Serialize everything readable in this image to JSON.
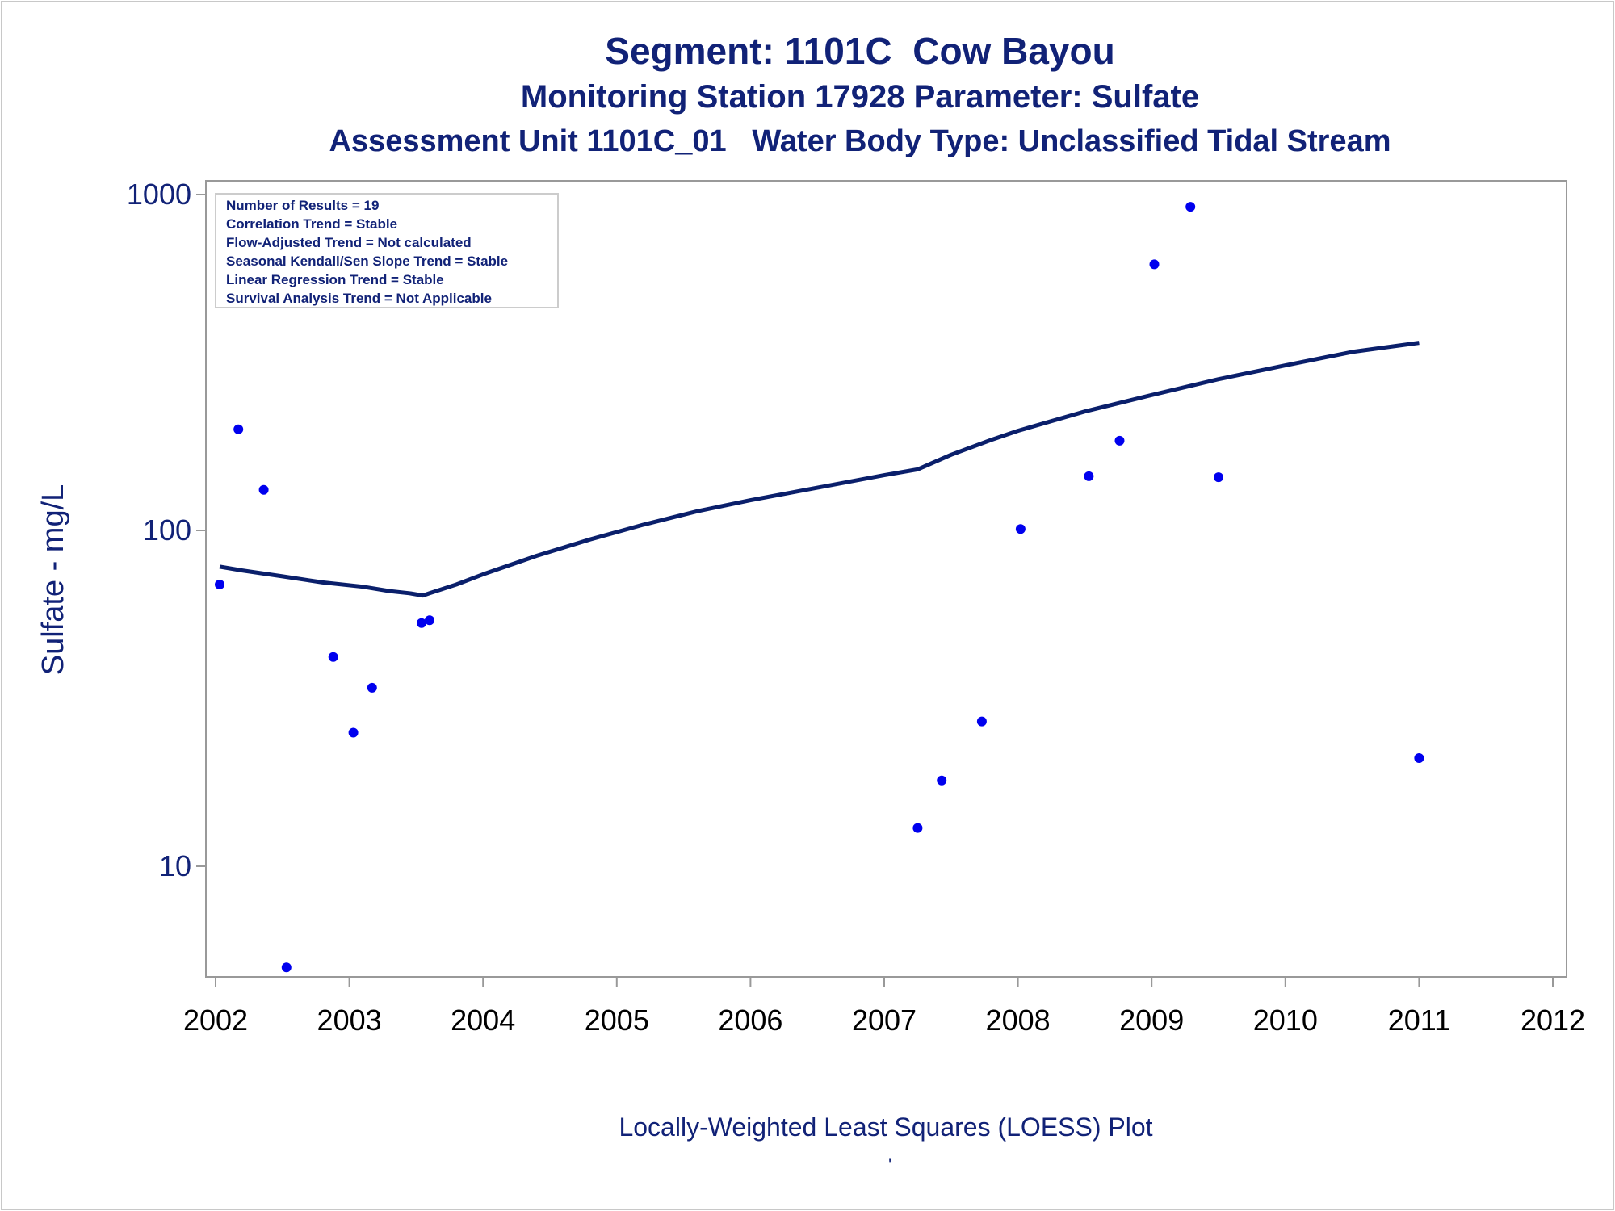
{
  "titles": {
    "line1": "Segment: 1101C  Cow Bayou",
    "line2": "Monitoring Station 17928 Parameter: Sulfate",
    "line3": "Assessment Unit 1101C_01   Water Body Type: Unclassified Tidal Stream"
  },
  "footnote": "Locally-Weighted Least Squares (LOESS) Plot",
  "footnote_mark": "'",
  "colors": {
    "text": "#112277",
    "points": "#0000ee",
    "loess_line": "#0a1f6b",
    "axis": "#999999"
  },
  "stats_box": [
    "Number of Results = 19",
    "Correlation Trend = Stable",
    "Flow-Adjusted Trend = Not calculated",
    "Seasonal Kendall/Sen Slope Trend = Stable",
    "Linear Regression Trend = Stable",
    "Survival Analysis Trend = Not Applicable"
  ],
  "chart_data": {
    "type": "scatter",
    "ylabel": "Sulfate - mg/L",
    "xlabel": "",
    "y_scale": "log",
    "xlim": [
      2002,
      2012
    ],
    "ylim": [
      5,
      1000
    ],
    "x_ticks": [
      "2002",
      "2003",
      "2004",
      "2005",
      "2006",
      "2007",
      "2008",
      "2009",
      "2010",
      "2011",
      "2012"
    ],
    "y_ticks": [
      "10",
      "100",
      "1000"
    ],
    "grid": false,
    "series": [
      {
        "kind": "scatter",
        "points": [
          [
            2002.03,
            69
          ],
          [
            2002.17,
            200
          ],
          [
            2002.36,
            132
          ],
          [
            2002.53,
            5
          ],
          [
            2002.88,
            42
          ],
          [
            2003.03,
            25
          ],
          [
            2003.17,
            34
          ],
          [
            2003.54,
            53
          ],
          [
            2003.6,
            54
          ],
          [
            2007.25,
            13
          ],
          [
            2007.43,
            18
          ],
          [
            2007.73,
            27
          ],
          [
            2008.02,
            101
          ],
          [
            2008.53,
            145
          ],
          [
            2008.76,
            185
          ],
          [
            2009.02,
            620
          ],
          [
            2009.29,
            920
          ],
          [
            2009.5,
            144
          ],
          [
            2011.0,
            21
          ]
        ]
      },
      {
        "kind": "line",
        "points": [
          [
            2002.03,
            78
          ],
          [
            2002.2,
            76
          ],
          [
            2002.5,
            73
          ],
          [
            2002.8,
            70
          ],
          [
            2003.1,
            68
          ],
          [
            2003.3,
            66
          ],
          [
            2003.45,
            65
          ],
          [
            2003.55,
            64
          ],
          [
            2003.6,
            65
          ],
          [
            2003.8,
            69
          ],
          [
            2004.0,
            74
          ],
          [
            2004.4,
            84
          ],
          [
            2004.8,
            94
          ],
          [
            2005.2,
            104
          ],
          [
            2005.6,
            114
          ],
          [
            2006.0,
            123
          ],
          [
            2006.5,
            134
          ],
          [
            2007.0,
            146
          ],
          [
            2007.25,
            152
          ],
          [
            2007.5,
            168
          ],
          [
            2007.8,
            186
          ],
          [
            2008.0,
            198
          ],
          [
            2008.5,
            226
          ],
          [
            2009.0,
            253
          ],
          [
            2009.5,
            282
          ],
          [
            2010.0,
            310
          ],
          [
            2010.5,
            340
          ],
          [
            2011.0,
            362
          ]
        ]
      }
    ]
  }
}
